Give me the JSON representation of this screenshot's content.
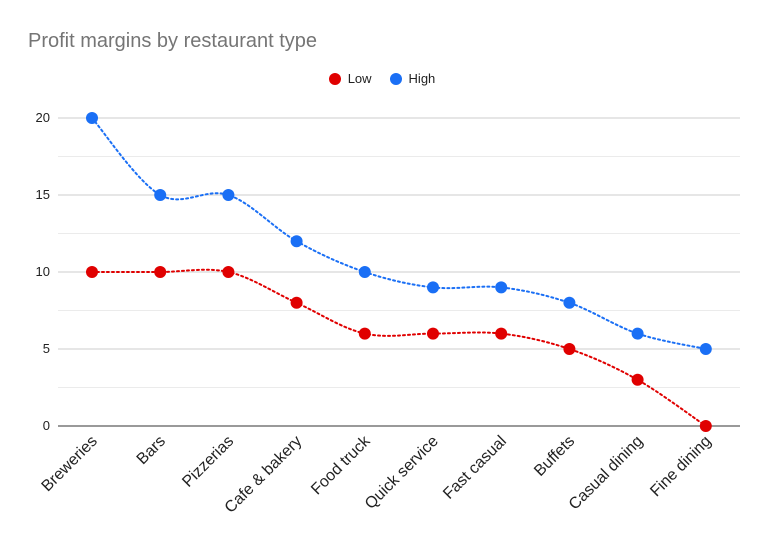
{
  "chart_data": {
    "type": "line",
    "title": "Profit margins by restaurant type",
    "xlabel": "",
    "ylabel": "",
    "categories": [
      "Breweries",
      "Bars",
      "Pizzerias",
      "Cafe & bakery",
      "Food truck",
      "Quick service",
      "Fast casual",
      "Buffets",
      "Casual dining",
      "Fine dining"
    ],
    "series": [
      {
        "name": "Low",
        "color": "#e00000",
        "values": [
          10,
          10,
          10,
          8,
          6,
          6,
          6,
          5,
          3,
          0
        ]
      },
      {
        "name": "High",
        "color": "#1a6ff5",
        "values": [
          20,
          15,
          15,
          12,
          10,
          9,
          9,
          8,
          6,
          5
        ]
      }
    ],
    "ylim": [
      0,
      20
    ],
    "yticks": [
      0,
      5,
      10,
      15,
      20
    ],
    "grid": true,
    "line_style": "dotted",
    "smooth": true,
    "legend_position": "top-center"
  }
}
